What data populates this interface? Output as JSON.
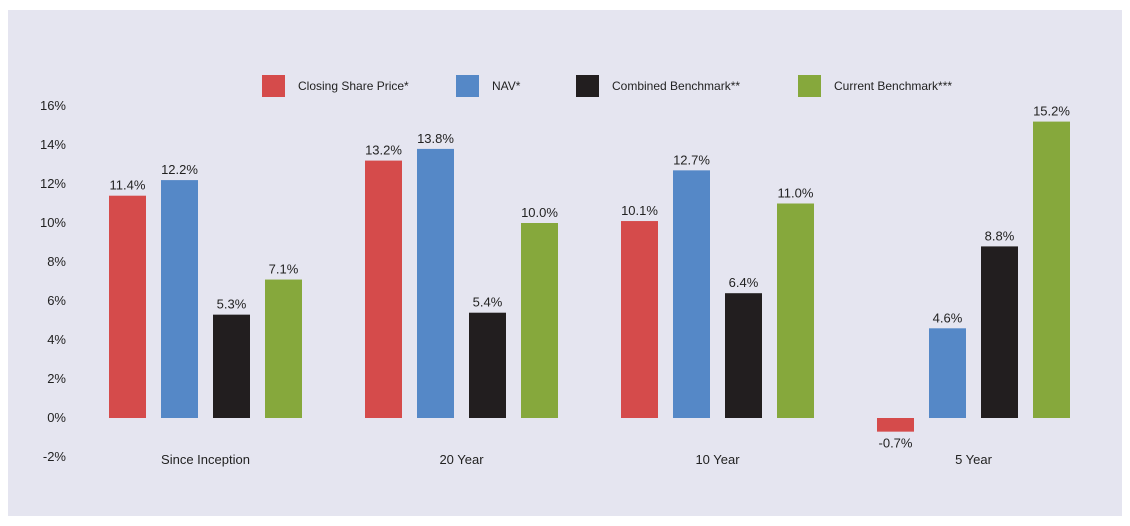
{
  "chart_data": {
    "type": "bar",
    "categories": [
      "Since Inception",
      "20 Year",
      "10 Year",
      "5 Year"
    ],
    "series": [
      {
        "name": "Closing Share Price*",
        "color": "#d54b4b",
        "values": [
          11.4,
          13.2,
          10.1,
          -0.7
        ]
      },
      {
        "name": "NAV*",
        "color": "#5588c7",
        "values": [
          12.2,
          13.8,
          12.7,
          4.6
        ]
      },
      {
        "name": "Combined Benchmark**",
        "color": "#221e1f",
        "values": [
          5.3,
          5.4,
          6.4,
          8.8
        ]
      },
      {
        "name": "Current Benchmark***",
        "color": "#86a83c",
        "values": [
          7.1,
          10.0,
          11.0,
          15.2
        ]
      }
    ],
    "data_labels": [
      [
        "11.4%",
        "13.2%",
        "10.1%",
        "-0.7%"
      ],
      [
        "12.2%",
        "13.8%",
        "12.7%",
        "4.6%"
      ],
      [
        "5.3%",
        "5.4%",
        "6.4%",
        "8.8%"
      ],
      [
        "7.1%",
        "10.0%",
        "11.0%",
        "15.2%"
      ]
    ],
    "ylim": [
      -2,
      16
    ],
    "yticks": [
      16,
      14,
      12,
      10,
      8,
      6,
      4,
      2,
      0,
      -2
    ],
    "ytick_labels": [
      "16%",
      "14%",
      "12%",
      "10%",
      "8%",
      "6%",
      "4%",
      "2%",
      "0%",
      "-2%"
    ],
    "legend_position": "top-center",
    "grid": false
  },
  "background_color": "#e5e5f0"
}
